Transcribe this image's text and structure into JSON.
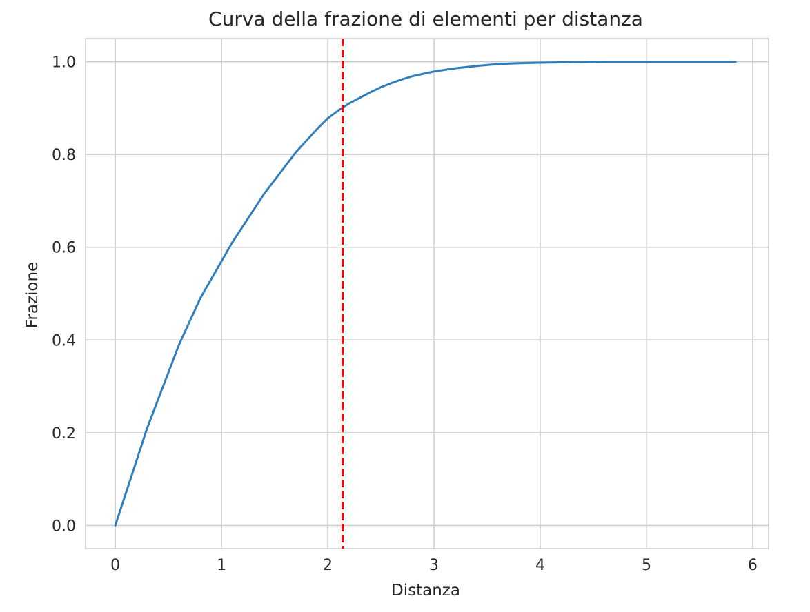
{
  "chart_data": {
    "type": "line",
    "title": "Curva della frazione di elementi per distanza",
    "xlabel": "Distanza",
    "ylabel": "Frazione",
    "xlim": [
      -0.28,
      6.15
    ],
    "ylim": [
      -0.05,
      1.05
    ],
    "xticks": [
      0,
      1,
      2,
      3,
      4,
      5,
      6
    ],
    "xtick_labels": [
      "0",
      "1",
      "2",
      "3",
      "4",
      "5",
      "6"
    ],
    "yticks": [
      0.0,
      0.2,
      0.4,
      0.6,
      0.8,
      1.0
    ],
    "ytick_labels": [
      "0.0",
      "0.2",
      "0.4",
      "0.6",
      "0.8",
      "1.0"
    ],
    "grid": true,
    "series": [
      {
        "color": "#2e7ebc",
        "x": [
          0.0,
          0.1,
          0.2,
          0.3,
          0.4,
          0.5,
          0.6,
          0.7,
          0.8,
          0.9,
          1.0,
          1.1,
          1.2,
          1.3,
          1.4,
          1.5,
          1.6,
          1.7,
          1.8,
          1.9,
          2.0,
          2.1,
          2.2,
          2.3,
          2.4,
          2.5,
          2.6,
          2.7,
          2.8,
          2.9,
          3.0,
          3.2,
          3.4,
          3.6,
          3.8,
          4.0,
          4.3,
          4.6,
          5.0,
          5.5,
          5.84
        ],
        "y": [
          0.0,
          0.07,
          0.14,
          0.21,
          0.27,
          0.33,
          0.39,
          0.44,
          0.49,
          0.53,
          0.57,
          0.61,
          0.645,
          0.68,
          0.715,
          0.745,
          0.775,
          0.805,
          0.83,
          0.855,
          0.878,
          0.895,
          0.91,
          0.922,
          0.934,
          0.945,
          0.954,
          0.962,
          0.969,
          0.974,
          0.979,
          0.986,
          0.991,
          0.995,
          0.997,
          0.998,
          0.999,
          1.0,
          1.0,
          1.0,
          1.0
        ]
      }
    ],
    "annotations": [
      {
        "type": "vline",
        "x": 2.14,
        "color": "#ff0000",
        "style": "dashed"
      }
    ]
  }
}
